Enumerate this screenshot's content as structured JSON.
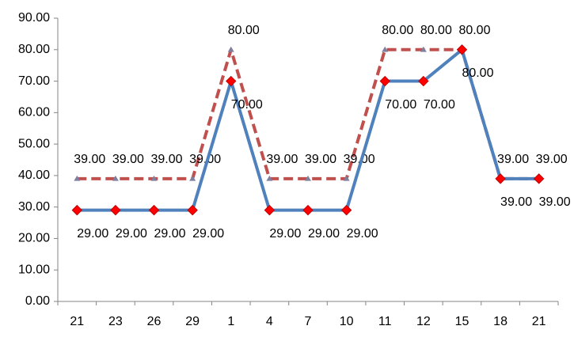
{
  "chart_data": {
    "type": "line",
    "categories": [
      "21",
      "23",
      "26",
      "29",
      "1",
      "4",
      "7",
      "10",
      "11",
      "12",
      "15",
      "18",
      "21"
    ],
    "series": [
      {
        "color": "#4f81bd",
        "marker_color": "#ff0000",
        "dashed": false,
        "values": [
          29,
          29,
          29,
          29,
          70,
          29,
          29,
          29,
          70,
          70,
          80,
          39,
          39
        ],
        "value_labels": [
          "29.00",
          "29.00",
          "29.00",
          "29.00",
          "70.00",
          "29.00",
          "29.00",
          "29.00",
          "70.00",
          "70.00",
          "80.00",
          "39.00",
          "39.00"
        ]
      },
      {
        "color": "#c0504d",
        "marker_color": "#7f7f9f",
        "dashed": true,
        "values": [
          39,
          39,
          39,
          39,
          80,
          39,
          39,
          39,
          80,
          80,
          80,
          39,
          39
        ],
        "value_labels": [
          "39.00",
          "39.00",
          "39.00",
          "39.00",
          "80.00",
          "39.00",
          "39.00",
          "39.00",
          "80.00",
          "80.00",
          "80.00",
          "39.00",
          "39.00"
        ]
      }
    ],
    "ylim": [
      0,
      90
    ],
    "yticks": [
      {
        "value": 0,
        "label": "0.00"
      },
      {
        "value": 10,
        "label": "10.00"
      },
      {
        "value": 20,
        "label": "20.00"
      },
      {
        "value": 30,
        "label": "30.00"
      },
      {
        "value": 40,
        "label": "40.00"
      },
      {
        "value": 50,
        "label": "50.00"
      },
      {
        "value": 60,
        "label": "60.00"
      },
      {
        "value": 70,
        "label": "70.00"
      },
      {
        "value": 80,
        "label": "80.00"
      },
      {
        "value": 90,
        "label": "90.00"
      }
    ]
  }
}
